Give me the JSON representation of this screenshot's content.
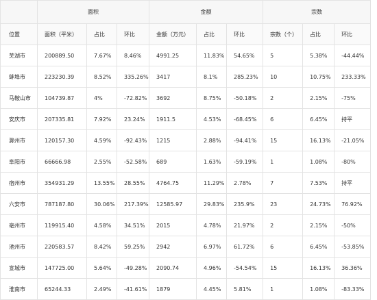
{
  "table": {
    "groups": {
      "area": "面积",
      "amount": "金额",
      "count": "宗数"
    },
    "headers": [
      "位置",
      "面积（平米）",
      "占比",
      "环比",
      "金额（万元）",
      "占比",
      "环比",
      "宗数（个）",
      "占比",
      "环比"
    ],
    "rows": [
      [
        "芜湖市",
        "200889.50",
        "7.67%",
        "8.46%",
        "4991.25",
        "11.83%",
        "54.65%",
        "5",
        "5.38%",
        "-44.44%"
      ],
      [
        "蚌埠市",
        "223230.39",
        "8.52%",
        "335.26%",
        "3417",
        "8.1%",
        "285.23%",
        "10",
        "10.75%",
        "233.33%"
      ],
      [
        "马鞍山市",
        "104739.87",
        "4%",
        "-72.82%",
        "3692",
        "8.75%",
        "-50.18%",
        "2",
        "2.15%",
        "-75%"
      ],
      [
        "安庆市",
        "207335.81",
        "7.92%",
        "23.24%",
        "1911.5",
        "4.53%",
        "-68.45%",
        "6",
        "6.45%",
        "持平"
      ],
      [
        "滁州市",
        "120157.30",
        "4.59%",
        "-92.43%",
        "1215",
        "2.88%",
        "-94.41%",
        "15",
        "16.13%",
        "-21.05%"
      ],
      [
        "阜阳市",
        "66666.98",
        "2.55%",
        "-52.58%",
        "689",
        "1.63%",
        "-59.19%",
        "1",
        "1.08%",
        "-80%"
      ],
      [
        "宿州市",
        "354931.29",
        "13.55%",
        "28.55%",
        "4764.75",
        "11.29%",
        "2.78%",
        "7",
        "7.53%",
        "持平"
      ],
      [
        "六安市",
        "787187.80",
        "30.06%",
        "217.39%",
        "12585.97",
        "29.83%",
        "235.9%",
        "23",
        "24.73%",
        "76.92%"
      ],
      [
        "亳州市",
        "119915.40",
        "4.58%",
        "34.51%",
        "2015",
        "4.78%",
        "21.97%",
        "2",
        "2.15%",
        "-50%"
      ],
      [
        "池州市",
        "220583.57",
        "8.42%",
        "59.25%",
        "2942",
        "6.97%",
        "61.72%",
        "6",
        "6.45%",
        "-53.85%"
      ],
      [
        "宣城市",
        "147725.00",
        "5.64%",
        "-49.28%",
        "2090.74",
        "4.96%",
        "-54.54%",
        "15",
        "16.13%",
        "36.36%"
      ],
      [
        "淮南市",
        "65244.33",
        "2.49%",
        "-41.61%",
        "1879",
        "4.45%",
        "5.81%",
        "1",
        "1.08%",
        "-83.33%"
      ]
    ]
  }
}
